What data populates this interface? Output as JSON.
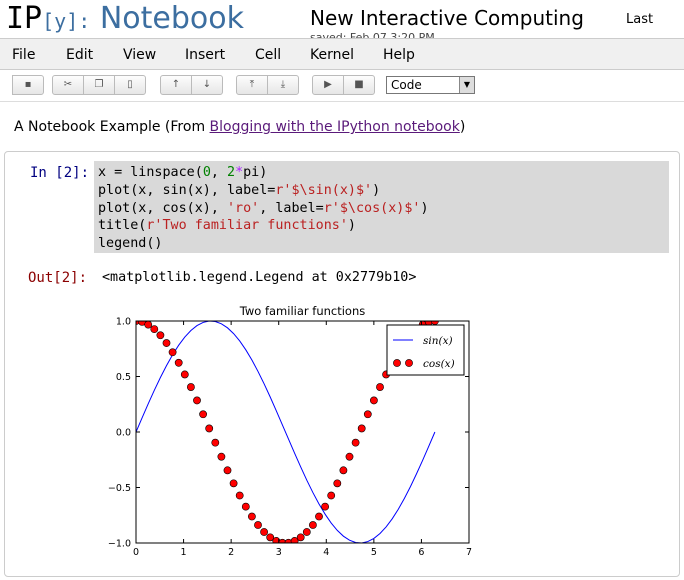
{
  "header": {
    "logo_ip": "IP",
    "logo_y": "[y]:",
    "logo_notebook": "Notebook",
    "notebook_title": "New Interactive Computing",
    "saved_text": "saved: Feb 07 3:20 PM",
    "last_label": "Last"
  },
  "menu": [
    "File",
    "Edit",
    "View",
    "Insert",
    "Cell",
    "Kernel",
    "Help"
  ],
  "toolbar": {
    "icons": [
      "save-icon",
      "cut-icon",
      "copy-icon",
      "paste-icon",
      "move-up-icon",
      "move-down-icon",
      "insert-above-icon",
      "insert-below-icon",
      "run-icon",
      "stop-icon"
    ],
    "cell_type": "Code"
  },
  "intro": {
    "prefix": "A Notebook Example (From ",
    "link": "Blogging with the IPython notebook",
    "suffix": ")"
  },
  "cell": {
    "in_prompt": "In [2]:",
    "out_prompt": "Out[2]:",
    "output_text": "<matplotlib.legend.Legend at 0x2779b10>"
  },
  "chart_data": {
    "type": "line",
    "title": "Two familiar functions",
    "xlim": [
      0,
      7
    ],
    "ylim": [
      -1.0,
      1.0
    ],
    "xticks": [
      "0",
      "1",
      "2",
      "3",
      "4",
      "5",
      "6",
      "7"
    ],
    "yticks": [
      "1.0",
      "0.5",
      "0.0",
      "−0.5",
      "−1.0"
    ],
    "x_range": [
      0,
      6.2832
    ],
    "num_points": 50,
    "series": [
      {
        "name": "sin(x)",
        "function": "sin",
        "style": "line",
        "color": "#0000ff"
      },
      {
        "name": "cos(x)",
        "function": "cos",
        "style": "markers",
        "color": "#ff0000"
      }
    ],
    "legend": "top-right",
    "grid": false
  }
}
